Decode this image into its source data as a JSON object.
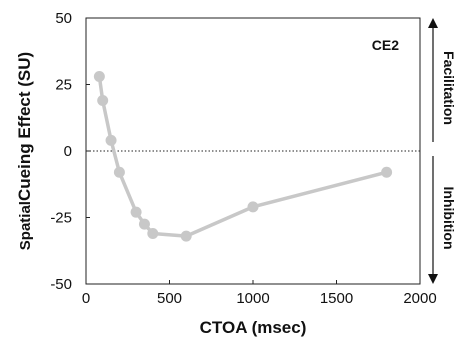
{
  "chart_data": {
    "type": "line",
    "title": "",
    "annotation": "CE2",
    "xlabel": "CTOA (msec)",
    "ylabel_prefix": "Spatial",
    "ylabel_main": "Cueing Effect (SU)",
    "xlim": [
      0,
      2000
    ],
    "ylim": [
      -50,
      50
    ],
    "xticks": [
      "0",
      "500",
      "1000",
      "1500",
      "2000"
    ],
    "yticks": [
      "-50",
      "-25",
      "0",
      "25",
      "50"
    ],
    "reference_line": 0,
    "side_labels": {
      "upper": "Facilitation",
      "lower": "Inhibition"
    },
    "series": [
      {
        "color": "#c8c8c8",
        "x": [
          80,
          100,
          150,
          200,
          300,
          350,
          400,
          600,
          1000,
          1800
        ],
        "y": [
          28,
          19,
          4,
          -8,
          -23,
          -27.5,
          -31,
          -32,
          -21,
          -8
        ]
      }
    ]
  }
}
